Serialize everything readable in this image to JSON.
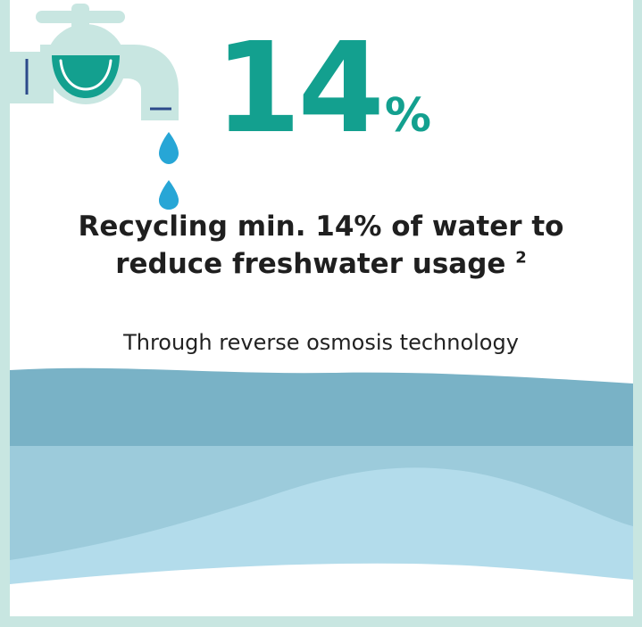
{
  "stat": {
    "number": "14",
    "unit": "%"
  },
  "headline": {
    "line1": "Recycling min. 14% of water to",
    "line2": "reduce freshwater usage",
    "footnote": "2"
  },
  "subtext": "Through reverse osmosis technology",
  "colors": {
    "accent": "#13a08f",
    "background": "#c8e6e1",
    "wave_dark": "#79b2c6",
    "wave_mid": "#9ccbdb",
    "wave_light": "#b3dceb",
    "droplet": "#27a6d6"
  }
}
